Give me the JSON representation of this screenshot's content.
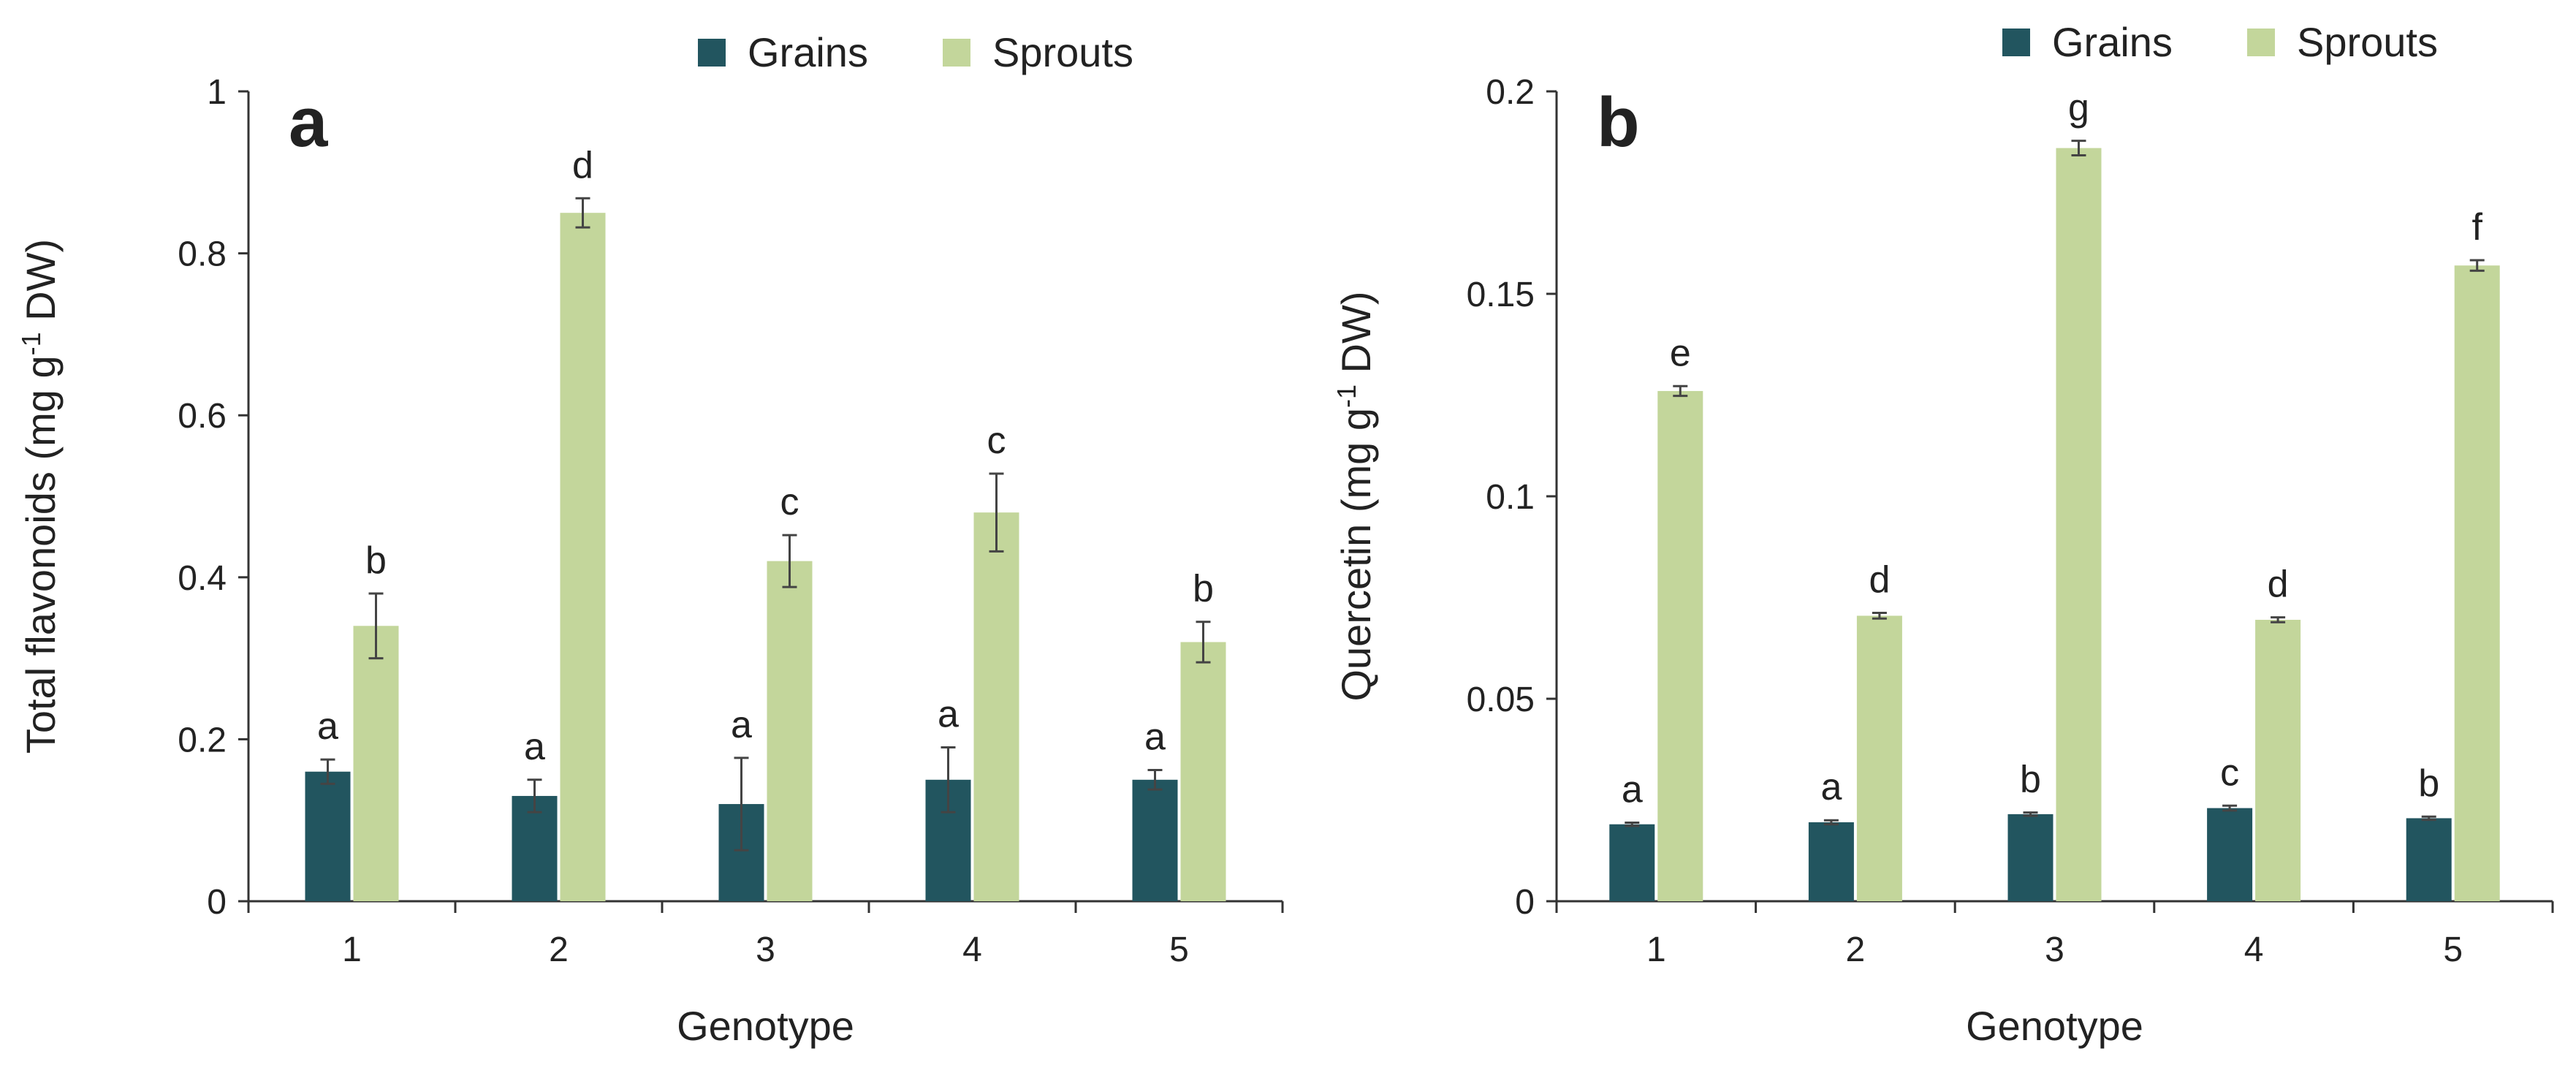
{
  "colors": {
    "grains": "#22555f",
    "sprouts": "#c3d69b",
    "axis": "#333333",
    "error": "#444444"
  },
  "chart_data": [
    {
      "type": "bar",
      "panel": "a",
      "xlabel": "Genotype",
      "ylabel_main": "Total flavonoids (mg g",
      "ylabel_sup": "-1",
      "ylabel_end": " DW)",
      "ylim": [
        0,
        1
      ],
      "yticks": [
        0,
        0.2,
        0.4,
        0.6,
        0.8,
        1
      ],
      "ytick_labels": [
        "0",
        "0.2",
        "0.4",
        "0.6",
        "0.8",
        "1"
      ],
      "categories": [
        "1",
        "2",
        "3",
        "4",
        "5"
      ],
      "legend": [
        "Grains",
        "Sprouts"
      ],
      "series": [
        {
          "name": "Grains",
          "values": [
            0.16,
            0.13,
            0.12,
            0.15,
            0.15
          ],
          "errors": [
            0.015,
            0.02,
            0.057,
            0.04,
            0.012
          ],
          "labels": [
            "a",
            "a",
            "a",
            "a",
            "a"
          ]
        },
        {
          "name": "Sprouts",
          "values": [
            0.34,
            0.85,
            0.42,
            0.48,
            0.32
          ],
          "errors": [
            0.04,
            0.018,
            0.032,
            0.048,
            0.025
          ],
          "labels": [
            "b",
            "d",
            "c",
            "c",
            "b"
          ]
        }
      ]
    },
    {
      "type": "bar",
      "panel": "b",
      "xlabel": "Genotype",
      "ylabel_main": "Quercetin (mg g",
      "ylabel_sup": "-1",
      "ylabel_end": " DW)",
      "ylim": [
        0,
        0.2
      ],
      "yticks": [
        0,
        0.05,
        0.1,
        0.15,
        0.2
      ],
      "ytick_labels": [
        "0",
        "0.05",
        "0.1",
        "0.15",
        "0.2"
      ],
      "categories": [
        "1",
        "2",
        "3",
        "4",
        "5"
      ],
      "legend": [
        "Grains",
        "Sprouts"
      ],
      "series": [
        {
          "name": "Grains",
          "values": [
            0.019,
            0.0195,
            0.0215,
            0.023,
            0.0205
          ],
          "errors": [
            0.0004,
            0.0005,
            0.0004,
            0.0006,
            0.0004
          ],
          "labels": [
            "a",
            "a",
            "b",
            "c",
            "b"
          ]
        },
        {
          "name": "Sprouts",
          "values": [
            0.126,
            0.0705,
            0.186,
            0.0695,
            0.157
          ],
          "errors": [
            0.0012,
            0.0007,
            0.0018,
            0.0006,
            0.0013
          ],
          "labels": [
            "e",
            "d",
            "g",
            "d",
            "f"
          ]
        }
      ]
    }
  ]
}
